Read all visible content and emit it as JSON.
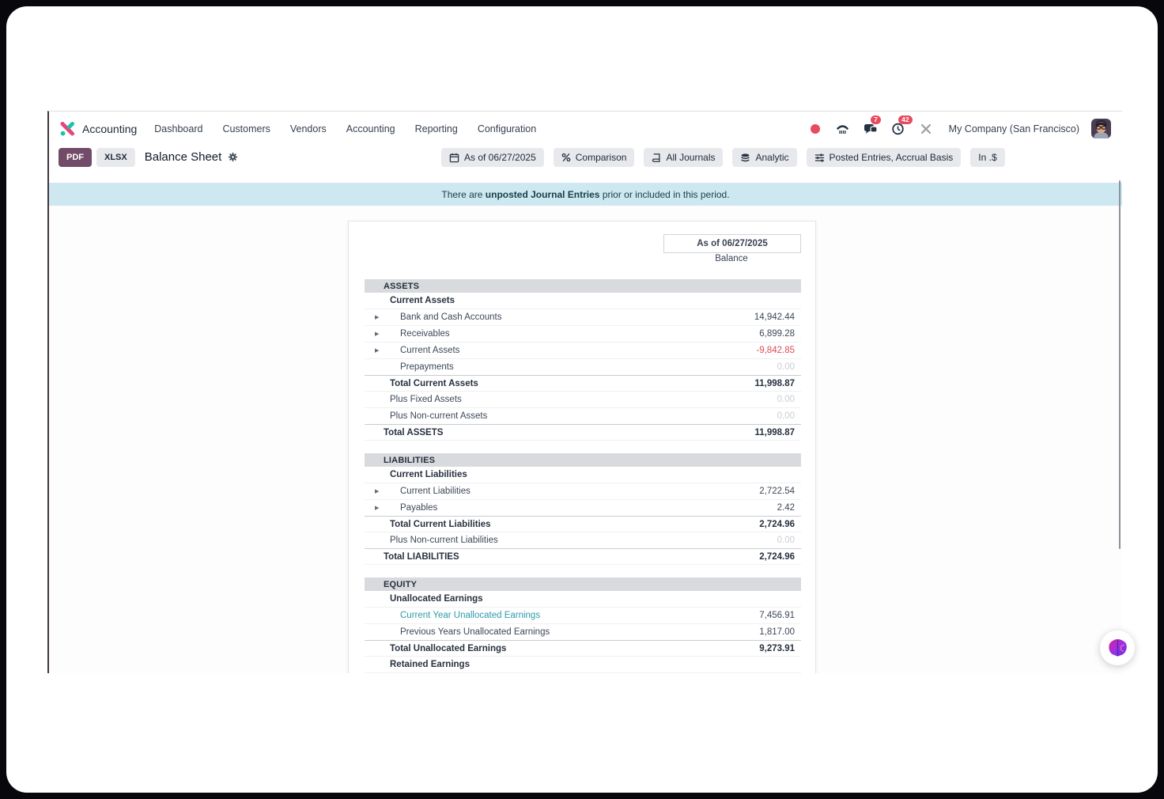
{
  "navbar": {
    "app_label": "Accounting",
    "menus": [
      "Dashboard",
      "Customers",
      "Vendors",
      "Accounting",
      "Reporting",
      "Configuration"
    ],
    "systray": {
      "company": "My Company (San Francisco)",
      "messages_badge": "7",
      "activities_badge": "42"
    }
  },
  "control": {
    "pdf_label": "PDF",
    "xlsx_label": "XLSX",
    "title": "Balance Sheet",
    "filters": [
      {
        "icon": "calendar-icon",
        "label": "As of 06/27/2025"
      },
      {
        "icon": "percent-icon",
        "label": "Comparison"
      },
      {
        "icon": "book-icon",
        "label": "All Journals"
      },
      {
        "icon": "layers-icon",
        "label": "Analytic"
      },
      {
        "icon": "sliders-icon",
        "label": "Posted Entries, Accrual Basis"
      },
      {
        "icon": "",
        "label": "In .$"
      }
    ]
  },
  "banner": {
    "pre": "There are ",
    "bold": "unposted Journal Entries",
    "post": " prior or included in this period."
  },
  "report": {
    "period_label": "As of 06/27/2025",
    "column_label": "Balance",
    "rows": [
      {
        "kind": "header",
        "label": "ASSETS"
      },
      {
        "kind": "line",
        "label": "Current Assets",
        "indent": 1,
        "bold": true
      },
      {
        "kind": "line",
        "label": "Bank and Cash Accounts",
        "indent": 2,
        "caret": true,
        "value": "14,942.44"
      },
      {
        "kind": "line",
        "label": "Receivables",
        "indent": 2,
        "caret": true,
        "value": "6,899.28"
      },
      {
        "kind": "line",
        "label": "Current Assets",
        "indent": 2,
        "caret": true,
        "value": "-9,842.85",
        "negative": true
      },
      {
        "kind": "line",
        "label": "Prepayments",
        "indent": 2,
        "value": "0.00",
        "muted": true
      },
      {
        "kind": "line",
        "label": "Total Current Assets",
        "indent": 1,
        "bold": true,
        "total": true,
        "value": "11,998.87"
      },
      {
        "kind": "line",
        "label": "Plus Fixed Assets",
        "indent": 1,
        "value": "0.00",
        "muted": true
      },
      {
        "kind": "line",
        "label": "Plus Non-current Assets",
        "indent": 1,
        "value": "0.00",
        "muted": true
      },
      {
        "kind": "line",
        "label": "Total ASSETS",
        "indent": 0,
        "bold": true,
        "total": true,
        "value": "11,998.87"
      },
      {
        "kind": "gap"
      },
      {
        "kind": "header",
        "label": "LIABILITIES"
      },
      {
        "kind": "line",
        "label": "Current Liabilities",
        "indent": 1,
        "bold": true
      },
      {
        "kind": "line",
        "label": "Current Liabilities",
        "indent": 2,
        "caret": true,
        "value": "2,722.54"
      },
      {
        "kind": "line",
        "label": "Payables",
        "indent": 2,
        "caret": true,
        "value": "2.42"
      },
      {
        "kind": "line",
        "label": "Total Current Liabilities",
        "indent": 1,
        "bold": true,
        "total": true,
        "value": "2,724.96"
      },
      {
        "kind": "line",
        "label": "Plus Non-current Liabilities",
        "indent": 1,
        "value": "0.00",
        "muted": true
      },
      {
        "kind": "line",
        "label": "Total LIABILITIES",
        "indent": 0,
        "bold": true,
        "total": true,
        "value": "2,724.96"
      },
      {
        "kind": "gap"
      },
      {
        "kind": "header",
        "label": "EQUITY"
      },
      {
        "kind": "line",
        "label": "Unallocated Earnings",
        "indent": 1,
        "bold": true
      },
      {
        "kind": "line",
        "label": "Current Year Unallocated Earnings",
        "indent": 2,
        "link": true,
        "value": "7,456.91"
      },
      {
        "kind": "line",
        "label": "Previous Years Unallocated Earnings",
        "indent": 2,
        "value": "1,817.00"
      },
      {
        "kind": "line",
        "label": "Total Unallocated Earnings",
        "indent": 1,
        "bold": true,
        "total": true,
        "value": "9,273.91"
      },
      {
        "kind": "line",
        "label": "Retained Earnings",
        "indent": 1,
        "bold": true
      }
    ]
  },
  "colors": {
    "brand": "#714B67",
    "banner_bg": "#cde8f0",
    "negative": "#dc4c54",
    "link": "#2d9aa8",
    "badge": "#e74c5e",
    "logo_pink": "#e3487b",
    "logo_teal": "#1fc0ac"
  }
}
